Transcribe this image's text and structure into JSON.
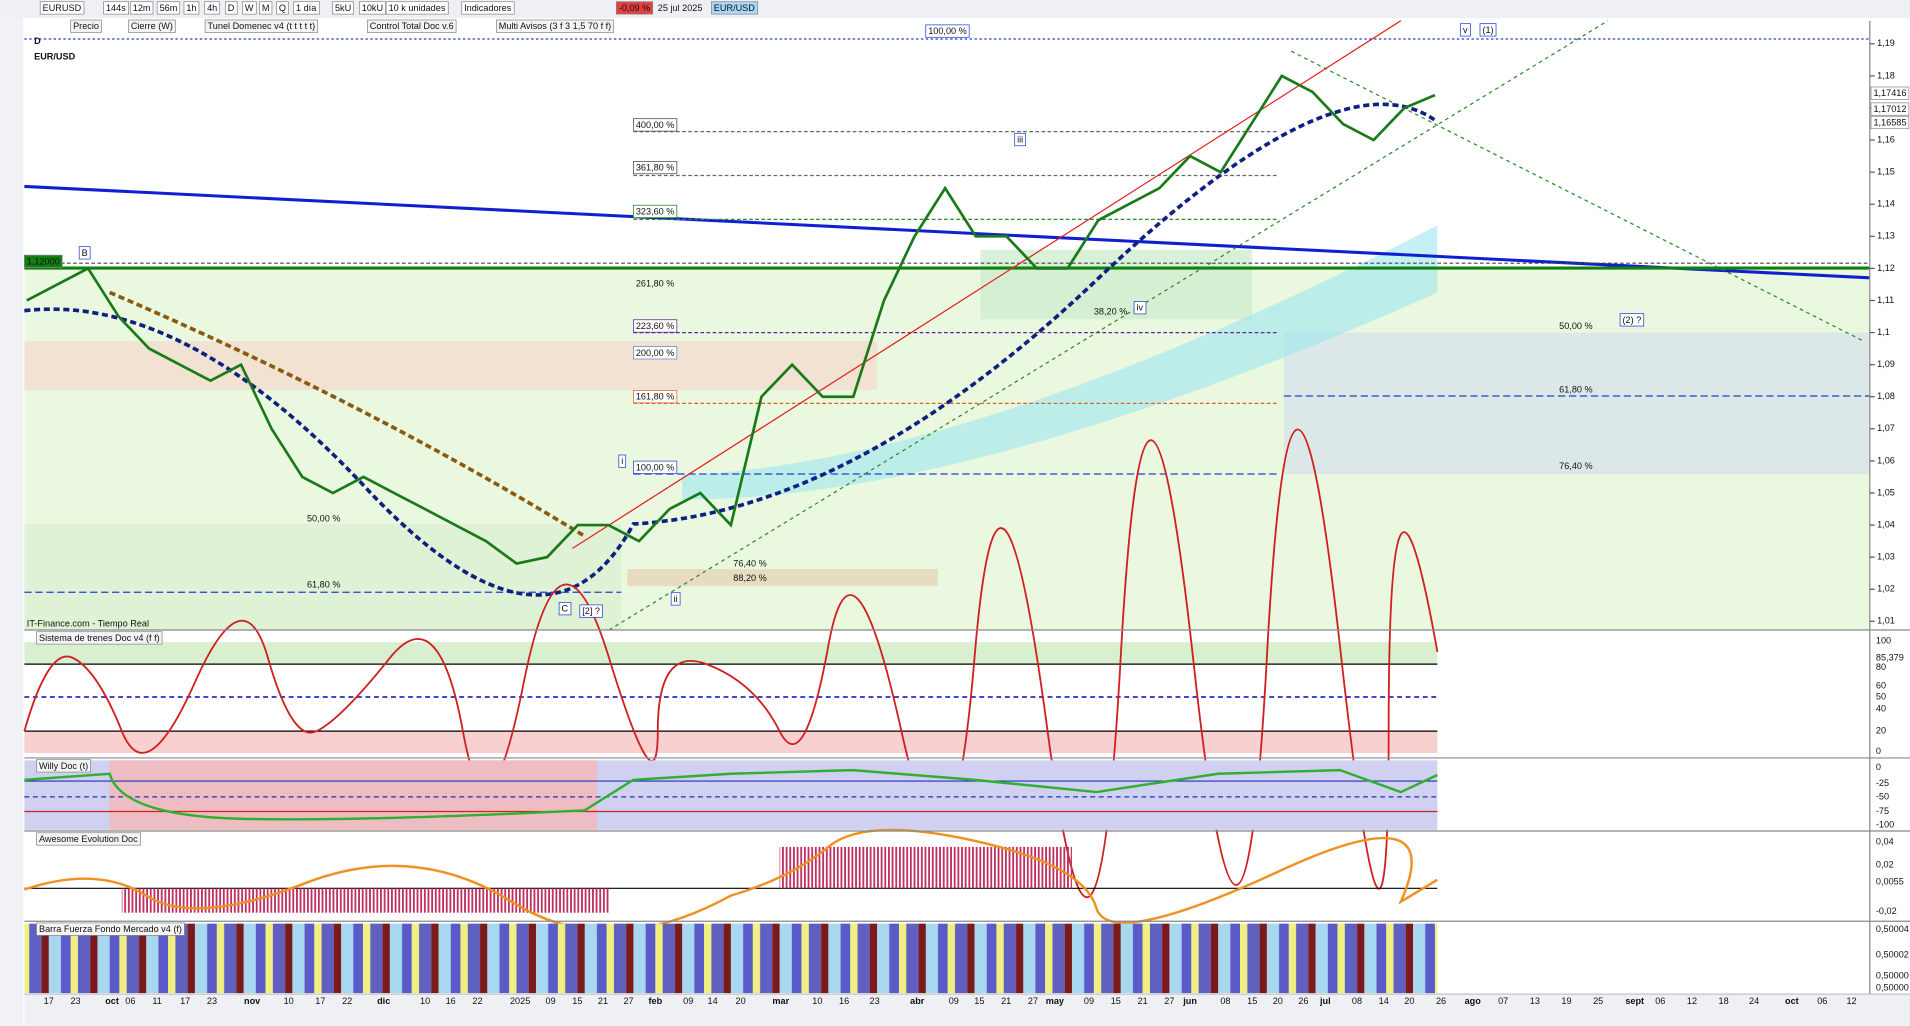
{
  "toolbar": {
    "symbol": "EURUSD",
    "timeframes": [
      "144s",
      "12m",
      "56m",
      "1h",
      "4h",
      "D",
      "W",
      "M",
      "Q"
    ],
    "period": "1 día",
    "units": [
      "5kU",
      "10kU"
    ],
    "unit_size": "10 k unidades",
    "indicators": "Indicadores",
    "change": "-0,09 %",
    "date": "25 jul 2025",
    "instrument": "EUR/USD"
  },
  "legend": [
    "Precio",
    "Cierre (W)",
    "Tunel Domenec v4 (t t t t t)",
    "Control Total Doc v.6",
    "Multi Avisos (3 f 3 1,5 70 f f)"
  ],
  "main_chart": {
    "timeframe": "D",
    "title": "EUR/USD",
    "source": "IT-Finance.com - Tiempo Real",
    "ylim": [
      1.0073,
      1.1972
    ],
    "yticks": [
      {
        "value": 1.19,
        "label": "1,19"
      },
      {
        "value": 1.18,
        "label": "1,18"
      },
      {
        "value": 1.17,
        "label": "1,17"
      },
      {
        "value": 1.16,
        "label": "1,16"
      },
      {
        "value": 1.15,
        "label": "1,15"
      },
      {
        "value": 1.14,
        "label": "1,14"
      },
      {
        "value": 1.13,
        "label": "1,13"
      },
      {
        "value": 1.12,
        "label": "1,12"
      },
      {
        "value": 1.11,
        "label": "1,11"
      },
      {
        "value": 1.1,
        "label": "1,1"
      },
      {
        "value": 1.09,
        "label": "1,09"
      },
      {
        "value": 1.08,
        "label": "1,08"
      },
      {
        "value": 1.07,
        "label": "1,07"
      },
      {
        "value": 1.06,
        "label": "1,06"
      },
      {
        "value": 1.05,
        "label": "1,05"
      },
      {
        "value": 1.04,
        "label": "1,04"
      },
      {
        "value": 1.03,
        "label": "1,03"
      },
      {
        "value": 1.02,
        "label": "1,02"
      },
      {
        "value": 1.01,
        "label": "1,01"
      }
    ],
    "close": [
      1.11,
      1.115,
      1.12,
      1.105,
      1.095,
      1.09,
      1.085,
      1.09,
      1.07,
      1.055,
      1.05,
      1.055,
      1.05,
      1.045,
      1.04,
      1.035,
      1.028,
      1.03,
      1.04,
      1.04,
      1.035,
      1.045,
      1.05,
      1.04,
      1.08,
      1.09,
      1.08,
      1.08,
      1.11,
      1.13,
      1.145,
      1.13,
      1.13,
      1.12,
      1.12,
      1.135,
      1.14,
      1.145,
      1.155,
      1.15,
      1.165,
      1.18,
      1.175,
      1.165,
      1.16,
      1.17,
      1.174
    ],
    "price_tags": [
      "1,17416",
      "1,17012",
      "1,16585"
    ],
    "level_label": "1,12000",
    "fib_labels": [
      "100,00 %",
      "400,00 %",
      "361,80 %",
      "323,60 %",
      "261,80 %",
      "223,60 %",
      "200,00 %",
      "161,80 %",
      "100,00 %",
      "50,00 %",
      "61,80 %",
      "76,40 %",
      "88,20 %",
      "38,20 %",
      "50,00 %",
      "61,80 %",
      "76,40 %"
    ],
    "wave_labels": [
      "B",
      "C",
      "[2] ?",
      "i",
      "ii",
      "iii",
      "iv",
      "v",
      "(1)",
      "(2) ?"
    ]
  },
  "panels": [
    {
      "title": "Sistema de trenes Doc v4 (f f)",
      "ticks": [
        "100",
        "85,379",
        "80",
        "60",
        "50",
        "40",
        "20",
        "0"
      ]
    },
    {
      "title": "Willy Doc (t)",
      "ticks": [
        "0",
        "-25",
        "-50",
        "-75",
        "-100"
      ]
    },
    {
      "title": "Awesome Evolution Doc",
      "ticks": [
        "0,04",
        "0,02",
        "0,0055",
        "-0,02"
      ]
    },
    {
      "title": "Barra Fuerza Fondo Mercado v4 (f)",
      "ticks": [
        "0,50004",
        "0,50002",
        "0,50000",
        "0,50000"
      ]
    }
  ],
  "x_axis": [
    "17",
    "23",
    "oct",
    "06",
    "11",
    "17",
    "23",
    "nov",
    "10",
    "17",
    "22",
    "dic",
    "10",
    "16",
    "22",
    "2025",
    "09",
    "15",
    "21",
    "27",
    "feb",
    "09",
    "14",
    "20",
    "mar",
    "10",
    "16",
    "23",
    "abr",
    "09",
    "15",
    "21",
    "27",
    "may",
    "09",
    "15",
    "21",
    "27",
    "jun",
    "08",
    "15",
    "20",
    "26",
    "jul",
    "08",
    "14",
    "20",
    "26",
    "ago",
    "07",
    "13",
    "19",
    "25",
    "sept",
    "06",
    "12",
    "18",
    "24",
    "oct",
    "06",
    "12"
  ]
}
